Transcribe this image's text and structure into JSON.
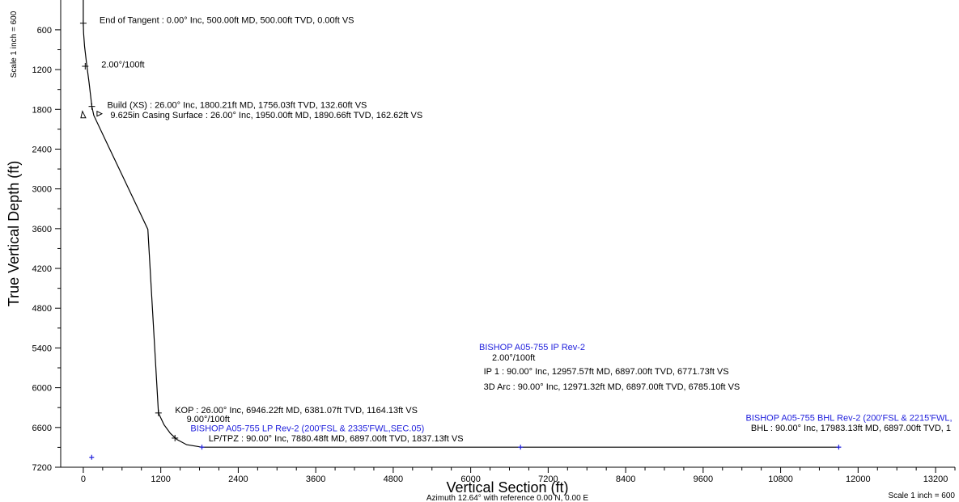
{
  "chart_data": {
    "type": "line",
    "xlabel": "Vertical Section (ft)",
    "ylabel": "True Vertical Depth (ft)",
    "xlim": [
      -350,
      13500
    ],
    "ylim": [
      7200,
      150
    ],
    "x_ticks": [
      0,
      1200,
      2400,
      3600,
      4800,
      6000,
      7200,
      8400,
      9600,
      10800,
      12000,
      13200
    ],
    "y_ticks": [
      600,
      1200,
      1800,
      2400,
      3000,
      3600,
      4200,
      4800,
      5400,
      6000,
      6600,
      7200
    ],
    "scale_left": "Scale 1 inch = 600",
    "scale_right": "Scale 1 inch = 600",
    "azimuth_note": "Azimuth 12.64° with reference 0.00 N, 0.00 E",
    "series": [
      {
        "points": [
          [
            0,
            0
          ],
          [
            0,
            500
          ],
          [
            5,
            650
          ],
          [
            20,
            850
          ],
          [
            50,
            1100
          ],
          [
            90,
            1400
          ],
          [
            132.6,
            1756.03
          ],
          [
            162.62,
            1890.66
          ],
          [
            400,
            2380
          ],
          [
            600,
            2790
          ],
          [
            800,
            3200
          ],
          [
            1000,
            3610
          ],
          [
            1164.13,
            6381.07
          ],
          [
            1250,
            6560
          ],
          [
            1350,
            6690
          ],
          [
            1450,
            6780
          ],
          [
            1600,
            6860
          ],
          [
            1837.13,
            6897
          ],
          [
            6771.73,
            6897
          ],
          [
            6785.1,
            6897
          ],
          [
            11700,
            6897
          ]
        ]
      }
    ],
    "markers": [
      {
        "x": 0,
        "y": 500,
        "shape": "cross"
      },
      {
        "x": 30,
        "y": 1150,
        "shape": "cross"
      },
      {
        "x": 132.6,
        "y": 1756.03,
        "shape": "cross"
      },
      {
        "x": 1164.13,
        "y": 6381.07,
        "shape": "cross"
      },
      {
        "x": 1420,
        "y": 6760,
        "shape": "cross"
      },
      {
        "x": 1837.13,
        "y": 6897,
        "shape": "target"
      },
      {
        "x": 6771.73,
        "y": 6897,
        "shape": "target"
      },
      {
        "x": 11700,
        "y": 6897,
        "shape": "target"
      },
      {
        "x": 130,
        "y": 7050,
        "shape": "target"
      }
    ],
    "annotations": [
      {
        "text": "End of Tangent : 0.00° Inc, 500.00ft MD, 500.00ft TVD, 0.00ft VS",
        "x": 250,
        "y": 500,
        "color": "black"
      },
      {
        "text": "2.00°/100ft",
        "x": 280,
        "y": 1170,
        "color": "black"
      },
      {
        "text": "Build (XS) : 26.00° Inc, 1800.21ft MD, 1756.03ft TVD, 132.60ft VS",
        "x": 370,
        "y": 1780,
        "color": "black"
      },
      {
        "text": "9.625in Casing Surface : 26.00° Inc, 1950.00ft MD, 1890.66ft TVD, 162.62ft VS",
        "x": 420,
        "y": 1930,
        "color": "black"
      },
      {
        "text": "KOP : 26.00° Inc, 6946.22ft MD, 6381.07ft TVD, 1164.13ft VS",
        "x": 1420,
        "y": 6380,
        "color": "black"
      },
      {
        "text": "9.00°/100ft",
        "x": 1600,
        "y": 6520,
        "color": "black"
      },
      {
        "text": "BISHOP A05-755 LP Rev-2 (200'FSL & 2335'FWL,SEC.05)",
        "x": 1660,
        "y": 6660,
        "color": "blue"
      },
      {
        "text": "LP/TPZ : 90.00° Inc, 7880.48ft MD, 6897.00ft TVD, 1837.13ft VS",
        "x": 1940,
        "y": 6810,
        "color": "black"
      },
      {
        "text": "BISHOP A05-755 IP Rev-2",
        "x": 6130,
        "y": 5430,
        "color": "blue"
      },
      {
        "text": "2.00°/100ft",
        "x": 6330,
        "y": 5590,
        "color": "black"
      },
      {
        "text": "IP 1 : 90.00° Inc, 12957.57ft MD, 6897.00ft TVD, 6771.73ft VS",
        "x": 6200,
        "y": 5800,
        "color": "black"
      },
      {
        "text": "3D Arc : 90.00° Inc, 12971.32ft MD, 6897.00ft TVD, 6785.10ft VS",
        "x": 6200,
        "y": 6030,
        "color": "black"
      },
      {
        "text": "BISHOP A05-755 BHL Rev-2 (200'FSL & 2215'FWL,",
        "x": 10260,
        "y": 6500,
        "color": "blue"
      },
      {
        "text": "BHL : 90.00° Inc, 17983.13ft MD, 6897.00ft TVD, 1",
        "x": 10340,
        "y": 6650,
        "color": "black"
      }
    ]
  }
}
